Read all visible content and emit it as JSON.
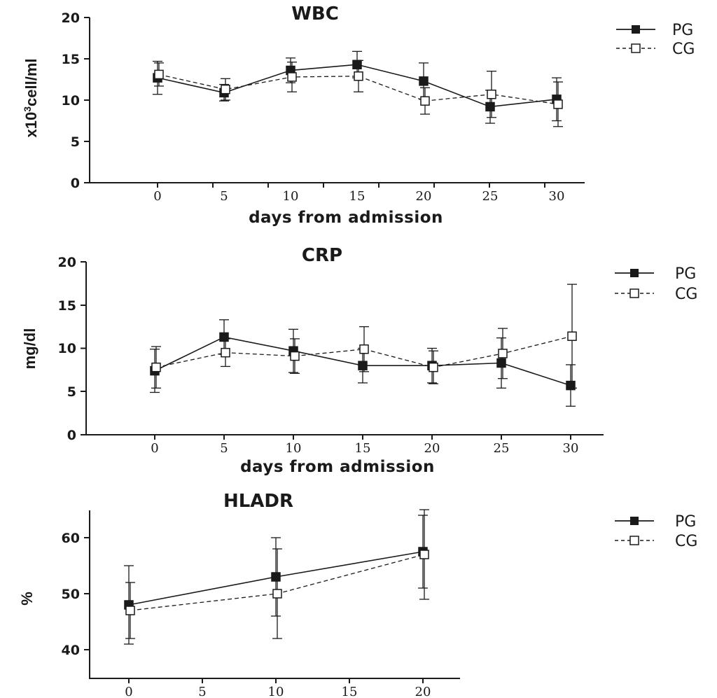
{
  "chart_data": [
    {
      "type": "line",
      "title": "WBC",
      "xlabel": "days from admission",
      "ylabel_html": "x10³cell/ml",
      "ylabel_parts": [
        "x10",
        "3",
        "cell/ml"
      ],
      "ylim": [
        0,
        20
      ],
      "yticks": [
        "0",
        "5",
        "10",
        "15",
        "20"
      ],
      "x": [
        0,
        5,
        10,
        15,
        20,
        25,
        30
      ],
      "xticks": [
        "0",
        "5",
        "10",
        "15",
        "20",
        "25",
        "30"
      ],
      "legend_position": "top-right",
      "series": [
        {
          "name": "PG",
          "marker": "filled-square",
          "line": "solid",
          "values": [
            12.7,
            10.9,
            13.6,
            14.3,
            12.3,
            9.2,
            10.1
          ],
          "err": [
            2.0,
            1.0,
            1.5,
            1.6,
            2.2,
            2.0,
            2.6
          ]
        },
        {
          "name": "CG",
          "marker": "open-square",
          "line": "dashed",
          "values": [
            13.1,
            11.3,
            12.8,
            12.9,
            9.9,
            10.7,
            9.5
          ],
          "err": [
            1.4,
            1.3,
            1.8,
            1.9,
            1.6,
            2.8,
            2.7
          ]
        }
      ]
    },
    {
      "type": "line",
      "title": "CRP",
      "xlabel": "days from admission",
      "ylabel": "mg/dl",
      "ylim": [
        0,
        20
      ],
      "yticks": [
        "0",
        "5",
        "10",
        "15",
        "20"
      ],
      "x": [
        0,
        5,
        10,
        15,
        20,
        25,
        30
      ],
      "xticks": [
        "0",
        "5",
        "10",
        "15",
        "20",
        "25",
        "30"
      ],
      "legend_position": "top-right",
      "series": [
        {
          "name": "PG",
          "marker": "filled-square",
          "line": "solid",
          "values": [
            7.4,
            11.3,
            9.7,
            8.0,
            8.0,
            8.3,
            5.7
          ],
          "err": [
            2.5,
            2.0,
            2.5,
            2.0,
            2.0,
            2.9,
            2.4
          ]
        },
        {
          "name": "CG",
          "marker": "open-square",
          "line": "dashed",
          "values": [
            7.8,
            9.5,
            9.1,
            9.9,
            7.8,
            9.4,
            11.4
          ],
          "err": [
            2.4,
            1.6,
            2.0,
            2.6,
            1.9,
            2.9,
            6.0
          ]
        }
      ]
    },
    {
      "type": "line",
      "title": "HLADR",
      "xlabel": "",
      "ylabel": "%",
      "ylim": [
        35,
        65
      ],
      "yticks": [
        "40",
        "50",
        "60"
      ],
      "ytick_values": [
        40,
        50,
        60
      ],
      "xlim": [
        0,
        22
      ],
      "x": [
        0,
        10,
        20
      ],
      "xticks": [
        "0",
        "5",
        "10",
        "15",
        "20"
      ],
      "xtick_values": [
        0,
        5,
        10,
        15,
        20
      ],
      "legend_position": "top-right",
      "series": [
        {
          "name": "PG",
          "marker": "filled-square",
          "line": "solid",
          "values": [
            48,
            53,
            57.5
          ],
          "err": [
            7,
            7,
            6.5
          ]
        },
        {
          "name": "CG",
          "marker": "open-square",
          "line": "dashed",
          "values": [
            47,
            50,
            57
          ],
          "err": [
            5,
            8,
            8
          ]
        }
      ]
    }
  ]
}
